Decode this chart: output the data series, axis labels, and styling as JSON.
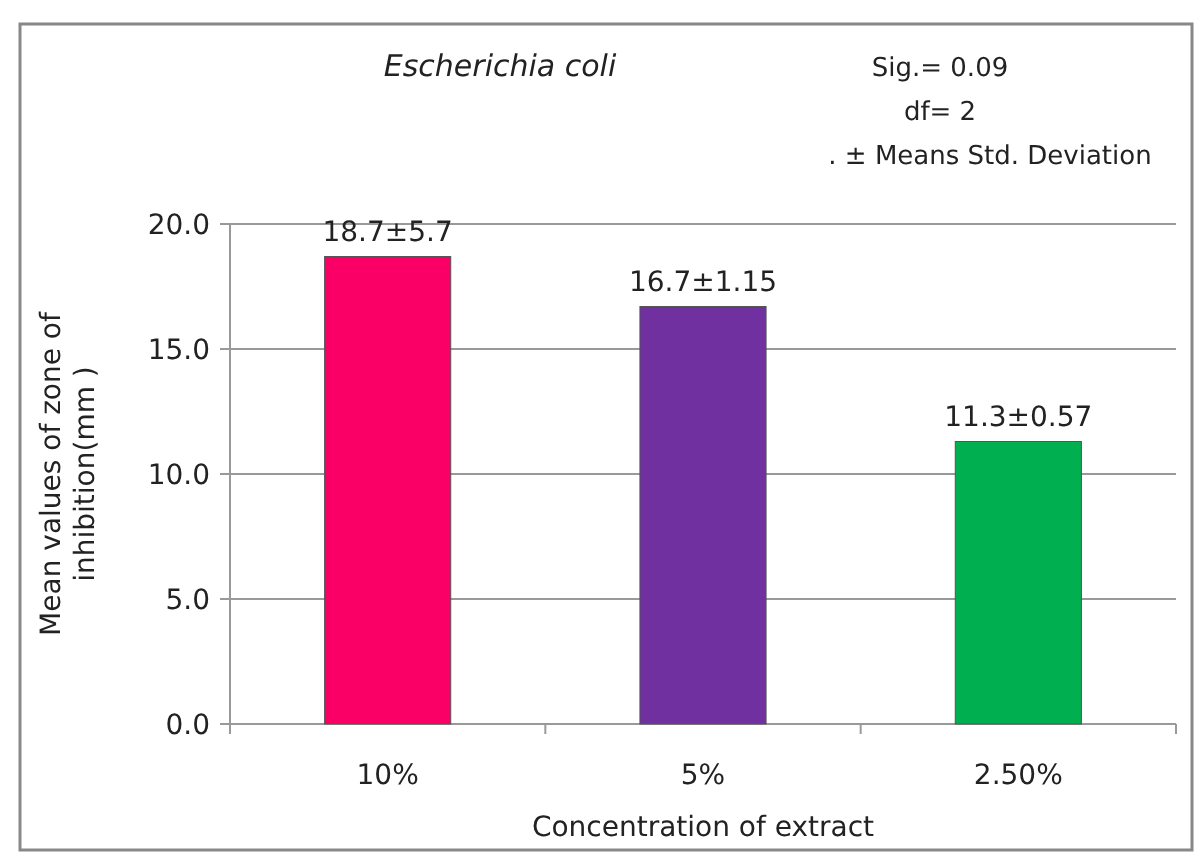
{
  "chart_data": {
    "type": "bar",
    "title": "Escherichia coli",
    "xlabel": "Concentration of extract",
    "ylabel": "Mean values of zone of inhibition(mm )",
    "categories": [
      "10%",
      "5%",
      "2.50%"
    ],
    "values": [
      18.7,
      16.7,
      11.3
    ],
    "colors": [
      "#fa0066",
      "#7030a0",
      "#00b050"
    ],
    "value_labels": [
      "18.7±5.7",
      "16.7±1.15",
      "11.3±0.57"
    ],
    "ylim": [
      0,
      20
    ],
    "yticks": [
      {
        "value": 0,
        "label": "0.0"
      },
      {
        "value": 5,
        "label": "5.0"
      },
      {
        "value": 10,
        "label": "10.0"
      },
      {
        "value": 15,
        "label": "15.0"
      },
      {
        "value": 20,
        "label": "20.0"
      }
    ],
    "grid": "y",
    "annotations": [
      "Sig.= 0.09",
      "df= 2",
      ". ± Means Std. Deviation"
    ]
  }
}
